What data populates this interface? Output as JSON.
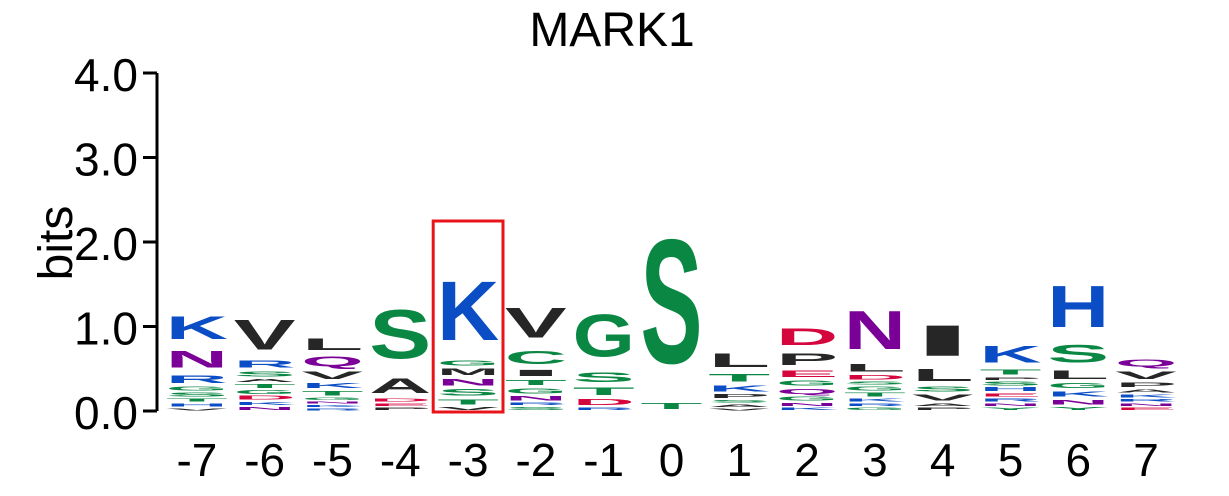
{
  "chart_data": {
    "type": "sequence-logo",
    "title": "MARK1",
    "ylabel": "bits",
    "xlabel": "",
    "ylim": [
      0,
      4
    ],
    "yticks": [
      {
        "value": 0,
        "label": "0.0"
      },
      {
        "value": 1,
        "label": "1.0"
      },
      {
        "value": 2,
        "label": "2.0"
      },
      {
        "value": 3,
        "label": "3.0"
      },
      {
        "value": 4,
        "label": "4.0"
      }
    ],
    "positions": [
      "-7",
      "-6",
      "-5",
      "-4",
      "-3",
      "-2",
      "-1",
      "0",
      "1",
      "2",
      "3",
      "4",
      "5",
      "6",
      "7"
    ],
    "highlight_position": "-3",
    "highlight_color": "#e8141a",
    "colors": {
      "K": "#0b4dc4",
      "R": "#0b4dc4",
      "H": "#0b4dc4",
      "N": "#7a0097",
      "Q": "#7a0097",
      "S": "#0b8744",
      "T": "#0b8744",
      "G": "#0b8744",
      "C": "#0b8744",
      "Y": "#0b8744",
      "D": "#d4063d",
      "E": "#d4063d",
      "A": "#262626",
      "V": "#262626",
      "L": "#262626",
      "I": "#262626",
      "P": "#262626",
      "M": "#262626",
      "F": "#262626",
      "W": "#262626"
    },
    "stacks": [
      [
        [
          "V",
          0.04
        ],
        [
          "H",
          0.06
        ],
        [
          "T",
          0.06
        ],
        [
          "S",
          0.07
        ],
        [
          "G",
          0.07
        ],
        [
          "R",
          0.15
        ],
        [
          "N",
          0.32
        ],
        [
          "K",
          0.43
        ]
      ],
      [
        [
          "N",
          0.06
        ],
        [
          "K",
          0.06
        ],
        [
          "D",
          0.07
        ],
        [
          "G",
          0.07
        ],
        [
          "T",
          0.07
        ],
        [
          "A",
          0.06
        ],
        [
          "S",
          0.1
        ],
        [
          "R",
          0.13
        ],
        [
          "V",
          0.56
        ]
      ],
      [
        [
          "R",
          0.04
        ],
        [
          "K",
          0.04
        ],
        [
          "N",
          0.04
        ],
        [
          "G",
          0.05
        ],
        [
          "T",
          0.08
        ],
        [
          "K",
          0.1
        ],
        [
          "V",
          0.15
        ],
        [
          "Q",
          0.18
        ],
        [
          "L",
          0.22
        ]
      ],
      [
        [
          "P",
          0.05
        ],
        [
          "E",
          0.05
        ],
        [
          "D",
          0.06
        ],
        [
          "A",
          0.28
        ],
        [
          "S",
          0.92
        ]
      ],
      [
        [
          "V",
          0.06
        ],
        [
          "T",
          0.1
        ],
        [
          "S",
          0.12
        ],
        [
          "N",
          0.12
        ],
        [
          "M",
          0.12
        ],
        [
          "G",
          0.1
        ],
        [
          "K",
          1.12
        ]
      ],
      [
        [
          "S",
          0.06
        ],
        [
          "R",
          0.05
        ],
        [
          "N",
          0.08
        ],
        [
          "G",
          0.1
        ],
        [
          "T",
          0.1
        ],
        [
          "I",
          0.12
        ],
        [
          "C",
          0.25
        ],
        [
          "V",
          0.56
        ]
      ],
      [
        [
          "R",
          0.05
        ],
        [
          "D",
          0.11
        ],
        [
          "T",
          0.15
        ],
        [
          "S",
          0.18
        ],
        [
          "G",
          0.8
        ]
      ],
      [
        [
          "T",
          0.11
        ],
        [
          "S",
          2.35
        ]
      ],
      [
        [
          "V",
          0.04
        ],
        [
          "A",
          0.05
        ],
        [
          "S",
          0.05
        ],
        [
          "P",
          0.07
        ],
        [
          "K",
          0.11
        ],
        [
          "T",
          0.15
        ],
        [
          "L",
          0.26
        ]
      ],
      [
        [
          "K",
          0.05
        ],
        [
          "N",
          0.06
        ],
        [
          "G",
          0.07
        ],
        [
          "Q",
          0.1
        ],
        [
          "G",
          0.1
        ],
        [
          "E",
          0.12
        ],
        [
          "P",
          0.22
        ],
        [
          "D",
          0.32
        ]
      ],
      [
        [
          "G",
          0.05
        ],
        [
          "R",
          0.05
        ],
        [
          "K",
          0.06
        ],
        [
          "T",
          0.07
        ],
        [
          "G",
          0.07
        ],
        [
          "S",
          0.06
        ],
        [
          "D",
          0.08
        ],
        [
          "L",
          0.15
        ],
        [
          "N",
          0.72
        ]
      ],
      [
        [
          "P",
          0.05
        ],
        [
          "A",
          0.05
        ],
        [
          "V",
          0.11
        ],
        [
          "S",
          0.1
        ],
        [
          "L",
          0.23
        ],
        [
          "I",
          0.58
        ]
      ],
      [
        [
          "Y",
          0.05
        ],
        [
          "N",
          0.05
        ],
        [
          "R",
          0.06
        ],
        [
          "E",
          0.06
        ],
        [
          "H",
          0.07
        ],
        [
          "S",
          0.07
        ],
        [
          "P",
          0.05
        ],
        [
          "T",
          0.1
        ],
        [
          "K",
          0.32
        ]
      ],
      [
        [
          "Y",
          0.06
        ],
        [
          "N",
          0.09
        ],
        [
          "K",
          0.1
        ],
        [
          "G",
          0.1
        ],
        [
          "L",
          0.16
        ],
        [
          "S",
          0.33
        ],
        [
          "H",
          0.79
        ]
      ],
      [
        [
          "E",
          0.05
        ],
        [
          "N",
          0.05
        ],
        [
          "R",
          0.05
        ],
        [
          "K",
          0.06
        ],
        [
          "A",
          0.06
        ],
        [
          "P",
          0.08
        ],
        [
          "V",
          0.15
        ],
        [
          "Q",
          0.13
        ]
      ]
    ]
  }
}
